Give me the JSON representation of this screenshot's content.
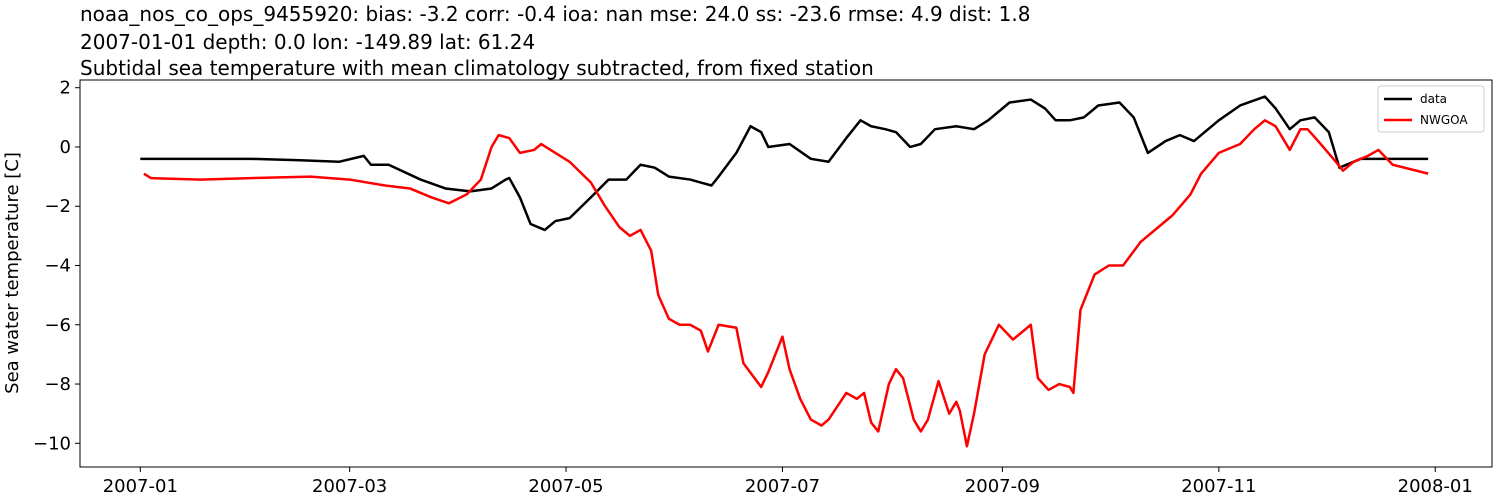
{
  "chart_data": {
    "type": "line",
    "title": "noaa_nos_co_ops_9455920: bias: -3.2  corr: -0.4  ioa: nan  mse: 24.0  ss: -23.6  rmse: 4.9  dist: 1.8",
    "subtitle": "2007-01-01 depth: 0.0 lon: -149.89 lat: 61.24",
    "description": "Subtidal sea temperature with mean climatology subtracted, from fixed station",
    "ylabel": "Sea water temperature [C]",
    "xlim": [
      13497,
      13895
    ],
    "xticks": [
      {
        "value": 13514,
        "label": "2007-01"
      },
      {
        "value": 13573,
        "label": "2007-03"
      },
      {
        "value": 13634,
        "label": "2007-05"
      },
      {
        "value": 13695,
        "label": "2007-07"
      },
      {
        "value": 13757,
        "label": "2007-09"
      },
      {
        "value": 13818,
        "label": "2007-11"
      },
      {
        "value": 13879,
        "label": "2008-01"
      }
    ],
    "ylim": [
      -10.8,
      2.26
    ],
    "yticks": [
      2,
      0,
      {
        "value": -2,
        "label": "−2"
      },
      {
        "value": -4,
        "label": "−4"
      },
      {
        "value": -6,
        "label": "−6"
      },
      {
        "value": -8,
        "label": "−8"
      },
      {
        "value": -10,
        "label": "−10"
      }
    ],
    "legend": "upper right",
    "series": [
      {
        "name": "data",
        "color": "#000000",
        "x": [
          13514,
          13545,
          13559,
          13570,
          13577,
          13579,
          13584,
          13593,
          13600,
          13607,
          13613,
          13617,
          13618,
          13621,
          13624,
          13628,
          13631,
          13635,
          13641,
          13646,
          13651,
          13655,
          13659,
          13663,
          13669,
          13672,
          13675,
          13677,
          13682,
          13686,
          13689,
          13691,
          13697,
          13703,
          13708,
          13713,
          13717,
          13720,
          13724,
          13727,
          13731,
          13734,
          13738,
          13744,
          13749,
          13753,
          13759,
          13765,
          13769,
          13772,
          13776,
          13780,
          13784,
          13790,
          13794,
          13798,
          13803,
          13807,
          13811,
          13815,
          13818,
          13824,
          13831,
          13834,
          13838,
          13841,
          13845,
          13849,
          13852,
          13858,
          13863,
          13877
        ],
        "values": [
          -0.4,
          -0.4,
          -0.45,
          -0.5,
          -0.3,
          -0.6,
          -0.6,
          -1.1,
          -1.4,
          -1.5,
          -1.4,
          -1.1,
          -1.05,
          -1.7,
          -2.6,
          -2.8,
          -2.5,
          -2.4,
          -1.7,
          -1.1,
          -1.1,
          -0.6,
          -0.7,
          -1.0,
          -1.1,
          -1.2,
          -1.3,
          -1.0,
          -0.2,
          0.7,
          0.5,
          0,
          0.1,
          -0.4,
          -0.5,
          0.3,
          0.9,
          0.7,
          0.6,
          0.5,
          0,
          0.1,
          0.6,
          0.7,
          0.6,
          0.9,
          1.5,
          1.6,
          1.3,
          0.9,
          0.9,
          1.0,
          1.4,
          1.5,
          1.0,
          -0.2,
          0.2,
          0.4,
          0.2,
          0.6,
          0.9,
          1.4,
          1.7,
          1.3,
          0.6,
          0.9,
          1.0,
          0.5,
          -0.7,
          -0.4,
          -0.4,
          -0.4
        ]
      },
      {
        "name": "NWGOA",
        "color": "#ff0000",
        "x": [
          13515,
          13517,
          13531,
          13545,
          13562,
          13573,
          13583,
          13590,
          13596,
          13601,
          13606,
          13610,
          13613,
          13615,
          13618,
          13621,
          13625,
          13627,
          13631,
          13635,
          13641,
          13645,
          13649,
          13652,
          13655,
          13658,
          13660,
          13663,
          13666,
          13669,
          13672,
          13674,
          13677,
          13682,
          13684,
          13689,
          13691,
          13695,
          13697,
          13700,
          13703,
          13706,
          13708,
          13713,
          13716,
          13718,
          13720,
          13722,
          13725,
          13727,
          13729,
          13732,
          13734,
          13736,
          13739,
          13742,
          13744,
          13745,
          13747,
          13749,
          13752,
          13756,
          13760,
          13765,
          13767,
          13770,
          13773,
          13776,
          13777,
          13779,
          13783,
          13787,
          13791,
          13796,
          13801,
          13805,
          13810,
          13813,
          13818,
          13824,
          13828,
          13831,
          13834,
          13838,
          13841,
          13843,
          13846,
          13851,
          13853,
          13856,
          13860,
          13863,
          13867,
          13877
        ],
        "values": [
          -0.9,
          -1.05,
          -1.1,
          -1.05,
          -1.0,
          -1.1,
          -1.3,
          -1.4,
          -1.7,
          -1.9,
          -1.6,
          -1.1,
          0.0,
          0.4,
          0.3,
          -0.2,
          -0.1,
          0.1,
          -0.2,
          -0.5,
          -1.2,
          -2.0,
          -2.7,
          -3.0,
          -2.8,
          -3.5,
          -5.0,
          -5.8,
          -6.0,
          -6.0,
          -6.2,
          -6.9,
          -6.0,
          -6.1,
          -7.3,
          -8.1,
          -7.6,
          -6.4,
          -7.5,
          -8.5,
          -9.2,
          -9.4,
          -9.2,
          -8.3,
          -8.5,
          -8.3,
          -9.3,
          -9.6,
          -8.0,
          -7.5,
          -7.8,
          -9.2,
          -9.6,
          -9.2,
          -7.9,
          -9.0,
          -8.6,
          -8.9,
          -10.1,
          -9.0,
          -7.0,
          -6.0,
          -6.5,
          -6.0,
          -7.8,
          -8.2,
          -8.0,
          -8.1,
          -8.3,
          -5.5,
          -4.3,
          -4.0,
          -4.0,
          -3.2,
          -2.7,
          -2.3,
          -1.6,
          -0.9,
          -0.2,
          0.1,
          0.6,
          0.9,
          0.7,
          -0.1,
          0.6,
          0.6,
          0.2,
          -0.5,
          -0.8,
          -0.5,
          -0.3,
          -0.1,
          -0.6,
          -0.9
        ]
      }
    ]
  }
}
